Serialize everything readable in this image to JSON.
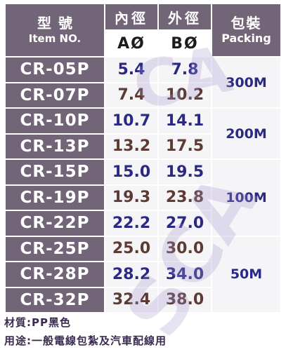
{
  "header": {
    "item_zh": "型號",
    "item_en": "Item NO.",
    "inner_zh": "內徑",
    "outer_zh": "外徑",
    "pack_zh": "包裝",
    "pack_en": "Packing",
    "inner_sub": "AØ",
    "outer_sub": "BØ"
  },
  "rows": [
    {
      "item": "CR-05P",
      "a": "5.4",
      "b": "7.8"
    },
    {
      "item": "CR-07P",
      "a": "7.4",
      "b": "10.2"
    },
    {
      "item": "CR-10P",
      "a": "10.7",
      "b": "14.1"
    },
    {
      "item": "CR-13P",
      "a": "13.2",
      "b": "17.5"
    },
    {
      "item": "CR-15P",
      "a": "15.0",
      "b": "19.5"
    },
    {
      "item": "CR-19P",
      "a": "19.3",
      "b": "23.8"
    },
    {
      "item": "CR-22P",
      "a": "22.2",
      "b": "27.0"
    },
    {
      "item": "CR-25P",
      "a": "25.0",
      "b": "30.0"
    },
    {
      "item": "CR-28P",
      "a": "28.2",
      "b": "34.0"
    },
    {
      "item": "CR-32P",
      "a": "32.4",
      "b": "38.0"
    }
  ],
  "packing": [
    "300M",
    "200M",
    "100M",
    "50M"
  ],
  "notes": {
    "material": "材質:PP黑色",
    "usage": "用途:一般電線包紮及汽車配線用"
  },
  "watermark": {
    "letters_1": "CA",
    "letters_2": "SCA"
  },
  "colors": {
    "header_bg": "#716577",
    "cell_bg": "#f5f4f6",
    "blue": "#2a2a84",
    "brown": "#5c3b35"
  }
}
